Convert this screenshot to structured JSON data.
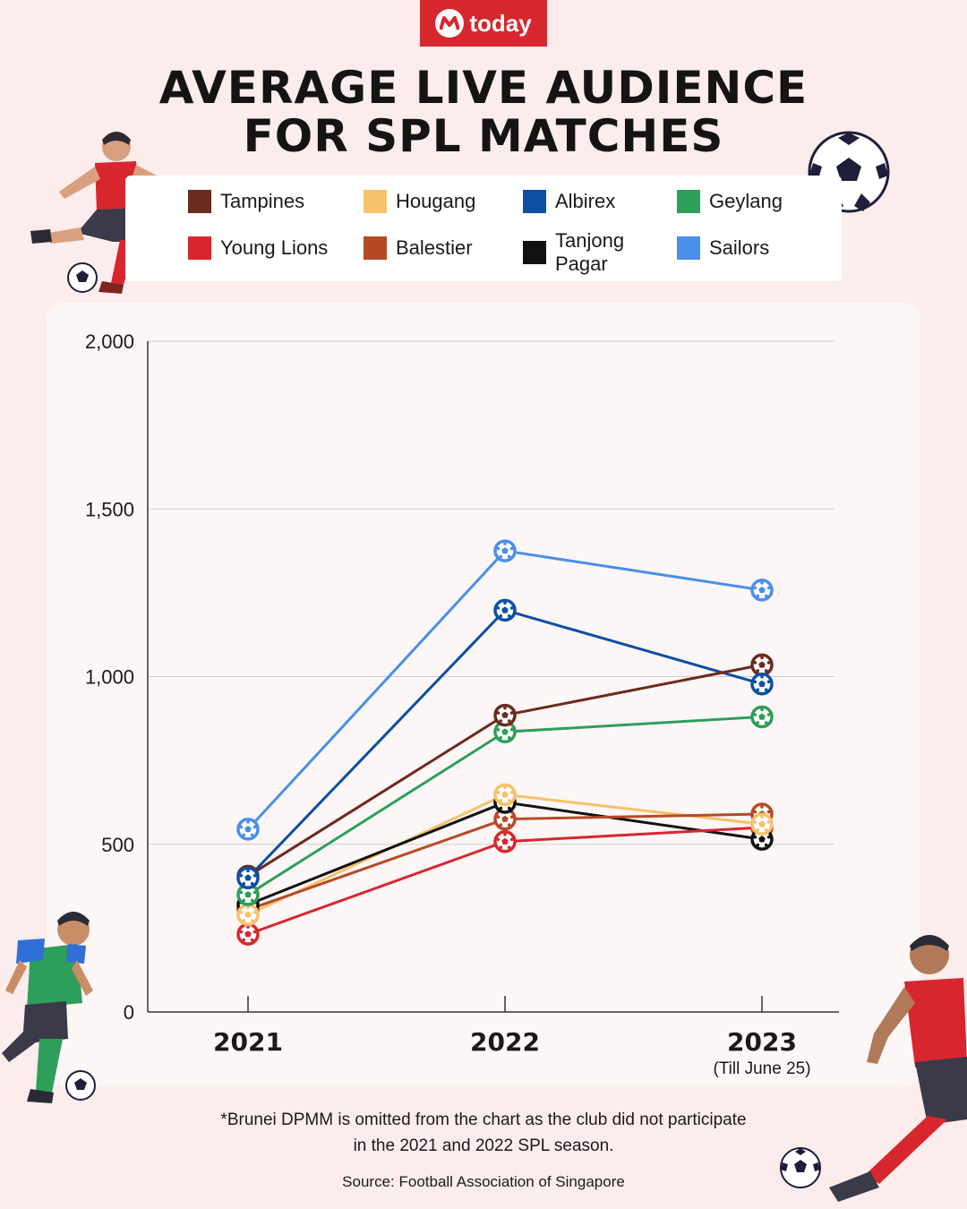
{
  "brand": {
    "name": "today"
  },
  "title_lines": [
    "AVERAGE LIVE AUDIENCE",
    "FOR SPL MATCHES"
  ],
  "footnote": "*Brunei DPMM is omitted from the chart as the club did not participate in the 2021 and 2022 SPL season.",
  "source": "Source: Football Association of Singapore",
  "chart_data": {
    "type": "line",
    "title": "AVERAGE LIVE AUDIENCE FOR SPL MATCHES",
    "x": [
      "2021",
      "2022",
      "2023"
    ],
    "x_sublabels": [
      "",
      "",
      "(Till June 25)"
    ],
    "ylim": [
      0,
      2000
    ],
    "yticks": [
      0,
      500,
      1000,
      1500,
      2000
    ],
    "ytick_labels": [
      "0",
      "500",
      "1,000",
      "1,500",
      "2,000"
    ],
    "grid": true,
    "legend_position": "top",
    "series": [
      {
        "name": "Sailors",
        "color": "#4a8fe8",
        "values": [
          545,
          1375,
          1258
        ]
      },
      {
        "name": "Albirex",
        "color": "#0d4fa3",
        "values": [
          400,
          1198,
          978
        ]
      },
      {
        "name": "Tampines",
        "color": "#6b2b1e",
        "values": [
          405,
          885,
          1035
        ]
      },
      {
        "name": "Geylang",
        "color": "#2e9e5b",
        "values": [
          350,
          835,
          880
        ]
      },
      {
        "name": "Hougang",
        "color": "#f7c16a",
        "values": [
          290,
          648,
          560
        ]
      },
      {
        "name": "Tanjong Pagar",
        "color": "#111111",
        "values": [
          320,
          625,
          515
        ]
      },
      {
        "name": "Balestier",
        "color": "#b64a26",
        "values": [
          305,
          575,
          590
        ]
      },
      {
        "name": "Young Lions",
        "color": "#d8262e",
        "values": [
          232,
          508,
          550
        ]
      }
    ]
  },
  "legend": [
    {
      "label": "Tampines",
      "color": "#6b2b1e"
    },
    {
      "label": "Hougang",
      "color": "#f7c16a"
    },
    {
      "label": "Albirex",
      "color": "#0d4fa3"
    },
    {
      "label": "Geylang",
      "color": "#2e9e5b"
    },
    {
      "label": "Young Lions",
      "color": "#d8262e"
    },
    {
      "label": "Balestier",
      "color": "#b64a26"
    },
    {
      "label": "Tanjong Pagar",
      "color": "#111111"
    },
    {
      "label": "Sailors",
      "color": "#4a8fe8"
    }
  ],
  "decorations": [
    "football-player-red-kicking",
    "football-player-green-running",
    "football-player-red-kicking-bottom",
    "soccer-ball-icon"
  ]
}
